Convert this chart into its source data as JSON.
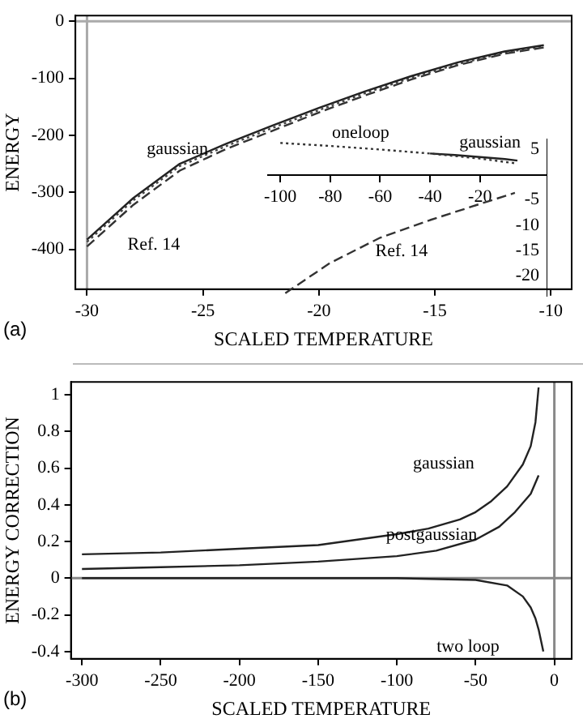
{
  "chart_data": [
    {
      "type": "line",
      "xlabel": "SCALED TEMPERATURE",
      "ylabel": "ENERGY",
      "xlim": [
        -30.5,
        -9.1
      ],
      "ylim": [
        -470,
        10
      ],
      "xticks": [
        -30,
        -25,
        -20,
        -15,
        -10
      ],
      "yticks": [
        0,
        -100,
        -200,
        -300,
        -400
      ],
      "grid": false,
      "marker": "none",
      "series": [
        {
          "color": "#222222",
          "line_style": "solid",
          "x": [
            -30,
            -28,
            -26,
            -24,
            -22,
            -20,
            -18,
            -16,
            -14,
            -12,
            -10.3
          ],
          "values": [
            -383,
            -310,
            -250,
            -215,
            -183,
            -152,
            -123,
            -96,
            -72,
            -53,
            -42
          ]
        },
        {
          "color": "#444444",
          "line_style": "dotted",
          "x": [
            -30,
            -28,
            -26,
            -24,
            -22,
            -20,
            -18,
            -16,
            -14,
            -12,
            -10.3
          ],
          "values": [
            -387,
            -314,
            -254,
            -219,
            -187,
            -156,
            -126,
            -99,
            -75,
            -55,
            -44
          ]
        },
        {
          "color": "#333333",
          "line_style": "dashed",
          "x": [
            -30,
            -28,
            -26,
            -24,
            -22,
            -20,
            -18,
            -16,
            -14,
            -12,
            -10.3
          ],
          "values": [
            -395,
            -322,
            -262,
            -224,
            -192,
            -160,
            -130,
            -102,
            -77,
            -57,
            -46
          ]
        }
      ],
      "ref_lines": [
        {
          "axis": "x",
          "value": -30,
          "color": "#aaaaaa"
        },
        {
          "axis": "y",
          "value": 0,
          "color": "#aaaaaa"
        }
      ],
      "annotations": [
        "(a)",
        {
          "text": "gaussian",
          "x": -26.1,
          "y": -252
        },
        "Ref. 14"
      ]
    },
    {
      "type": "line",
      "xlim": [
        -105,
        7
      ],
      "ylim": [
        -24,
        7
      ],
      "xticks": [
        -100,
        -80,
        -60,
        -40,
        -20
      ],
      "yticks": [
        5,
        -5,
        -10,
        -15,
        -20
      ],
      "grid": false,
      "marker": "none",
      "series": [
        {
          "color": "#333333",
          "line_style": "dotted",
          "x": [
            -100,
            -80,
            -60,
            -40,
            -20,
            -5
          ],
          "values": [
            6.3,
            5.7,
            5.0,
            4.2,
            3.2,
            2.2
          ]
        },
        {
          "color": "#222222",
          "line_style": "solid",
          "x": [
            -40,
            -30,
            -20,
            -10,
            -5
          ],
          "values": [
            4.2,
            3.9,
            3.5,
            3.1,
            2.8
          ]
        },
        {
          "color": "#333333",
          "line_style": "dashed",
          "x": [
            -98,
            -80,
            -60,
            -40,
            -20,
            -6
          ],
          "values": [
            -23.5,
            -17.5,
            -12.5,
            -9,
            -5.8,
            -3.6
          ]
        }
      ],
      "annotations": [
        {
          "text": "oneloop",
          "x": -67.8,
          "y": 5.2
        },
        {
          "text": "gaussian",
          "x": -16,
          "y": 3.3
        },
        "Ref. 14"
      ]
    },
    {
      "type": "line",
      "xlabel": "SCALED TEMPERATURE",
      "ylabel": "ENERGY CORRECTION",
      "xlim": [
        -307,
        11
      ],
      "ylim": [
        -0.44,
        1.07
      ],
      "xticks": [
        -300,
        -250,
        -200,
        -150,
        -100,
        -50,
        0
      ],
      "yticks": [
        -0.4,
        -0.2,
        0,
        0.2,
        0.4,
        0.6,
        0.8,
        1
      ],
      "grid": false,
      "marker": "none",
      "series": [
        {
          "color": "#222222",
          "line_style": "solid",
          "x": [
            -300,
            -250,
            -200,
            -150,
            -100,
            -80,
            -60,
            -50,
            -40,
            -30,
            -20,
            -15,
            -12,
            -10
          ],
          "values": [
            0.13,
            0.14,
            0.16,
            0.18,
            0.24,
            0.27,
            0.32,
            0.36,
            0.42,
            0.5,
            0.62,
            0.72,
            0.85,
            1.04
          ]
        },
        {
          "color": "#222222",
          "line_style": "solid",
          "x": [
            -300,
            -250,
            -200,
            -150,
            -100,
            -75,
            -50,
            -35,
            -25,
            -15,
            -10
          ],
          "values": [
            0.05,
            0.06,
            0.07,
            0.09,
            0.12,
            0.15,
            0.21,
            0.28,
            0.36,
            0.46,
            0.56
          ]
        },
        {
          "color": "#222222",
          "line_style": "solid",
          "x": [
            -300,
            -100,
            -50,
            -30,
            -20,
            -15,
            -12,
            -10,
            -7
          ],
          "values": [
            0,
            0,
            -0.01,
            -0.04,
            -0.1,
            -0.16,
            -0.22,
            -0.28,
            -0.4
          ]
        }
      ],
      "ref_lines": [
        {
          "axis": "x",
          "value": 0,
          "color": "#888888"
        },
        {
          "axis": "y",
          "value": 0,
          "color": "#888888"
        }
      ],
      "annotations": [
        "(b)",
        "gaussian",
        {
          "text": "postgaussian",
          "x": -78,
          "y": 0.15
        },
        "two loop"
      ]
    }
  ]
}
